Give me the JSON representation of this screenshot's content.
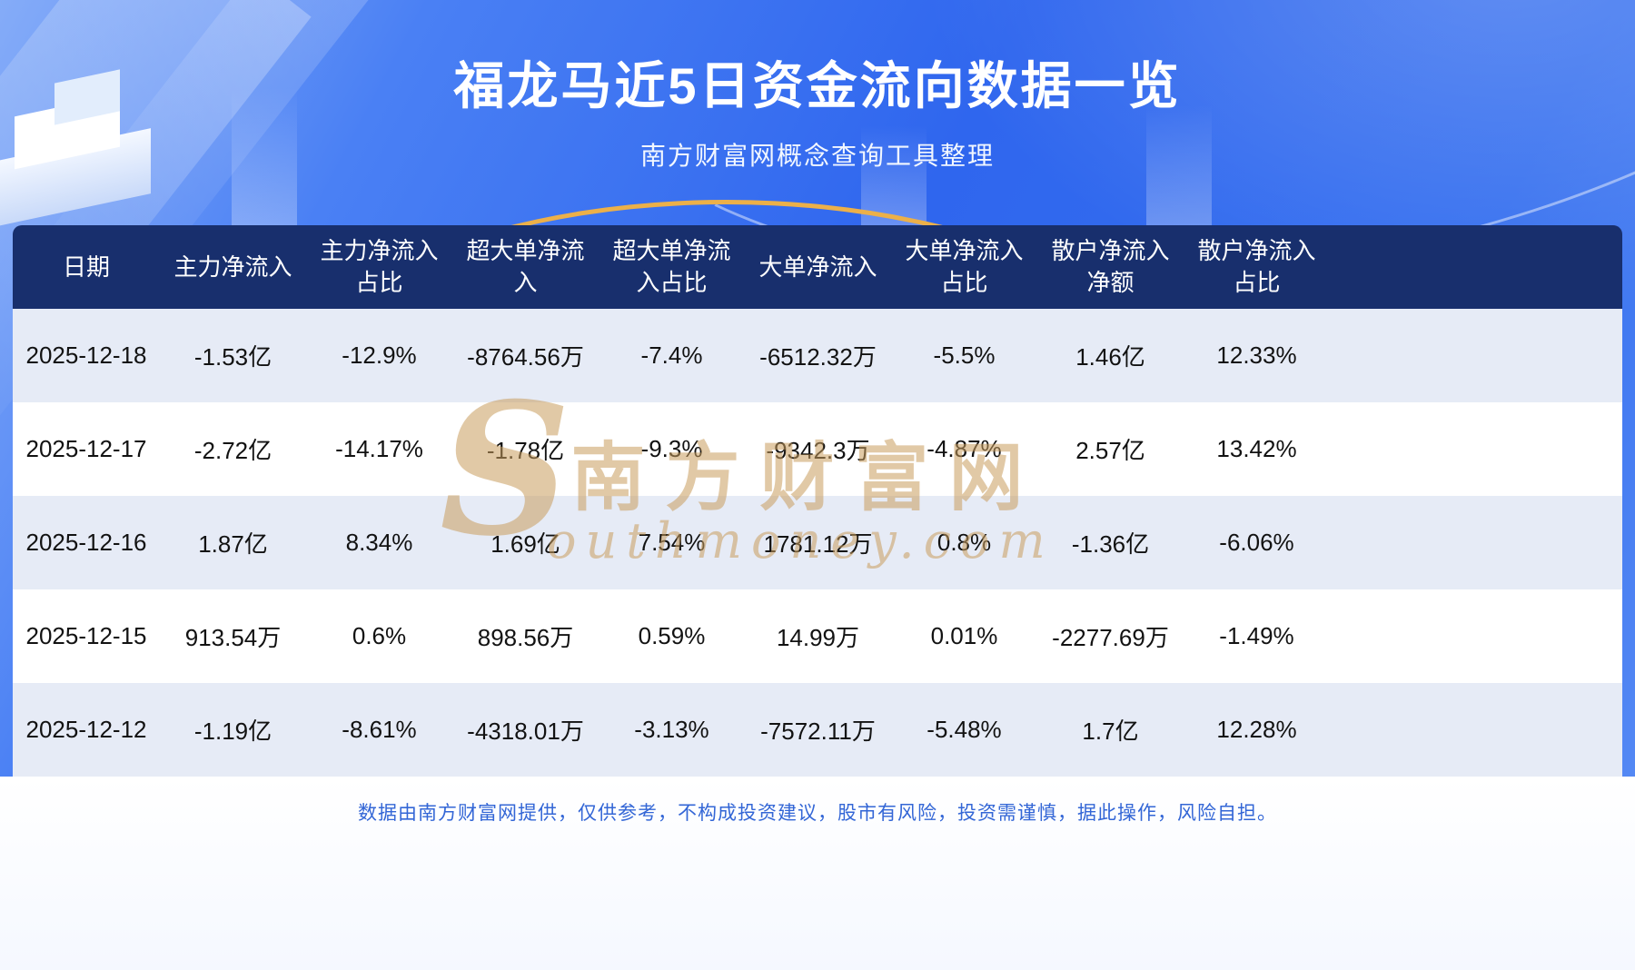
{
  "page": {
    "title": "福龙马近5日资金流向数据一览",
    "subtitle": "南方财富网概念查询工具整理",
    "disclaimer": "数据由南方财富网提供，仅供参考，不构成投资建议，股市有风险，投资需谨慎，据此操作，风险自担。"
  },
  "watermark": {
    "initial": "S",
    "cn": "南方财富网",
    "en": "outhmoney.com"
  },
  "colors": {
    "background_blue": "#2f66ee",
    "header_navy": "#182f6d",
    "row_stripe": "#e6ebf6",
    "accent_gold": "#ecb049",
    "footer_text_blue": "#3366d6",
    "watermark_gold": "#c99c5c"
  },
  "table": {
    "headers_display": [
      "日期",
      "主力净流入",
      "主力净流入\n占比",
      "超大单净流\n入",
      "超大单净流\n入占比",
      "大单净流入",
      "大单净流入\n占比",
      "散户净流入\n净额",
      "散户净流入\n占比"
    ]
  },
  "chart_data": {
    "type": "table",
    "title": "福龙马近5日资金流向数据一览",
    "subtitle": "南方财富网概念查询工具整理",
    "columns": [
      "日期",
      "主力净流入",
      "主力净流入占比",
      "超大单净流入",
      "超大单净流入占比",
      "大单净流入",
      "大单净流入占比",
      "散户净流入净额",
      "散户净流入占比"
    ],
    "rows": [
      [
        "2025-12-18",
        "-1.53亿",
        "-12.9%",
        "-8764.56万",
        "-7.4%",
        "-6512.32万",
        "-5.5%",
        "1.46亿",
        "12.33%"
      ],
      [
        "2025-12-17",
        "-2.72亿",
        "-14.17%",
        "-1.78亿",
        "-9.3%",
        "-9342.3万",
        "-4.87%",
        "2.57亿",
        "13.42%"
      ],
      [
        "2025-12-16",
        "1.87亿",
        "8.34%",
        "1.69亿",
        "7.54%",
        "1781.12万",
        "0.8%",
        "-1.36亿",
        "-6.06%"
      ],
      [
        "2025-12-15",
        "913.54万",
        "0.6%",
        "898.56万",
        "0.59%",
        "14.99万",
        "0.01%",
        "-2277.69万",
        "-1.49%"
      ],
      [
        "2025-12-12",
        "-1.19亿",
        "-8.61%",
        "-4318.01万",
        "-3.13%",
        "-7572.11万",
        "-5.48%",
        "1.7亿",
        "12.28%"
      ]
    ]
  }
}
